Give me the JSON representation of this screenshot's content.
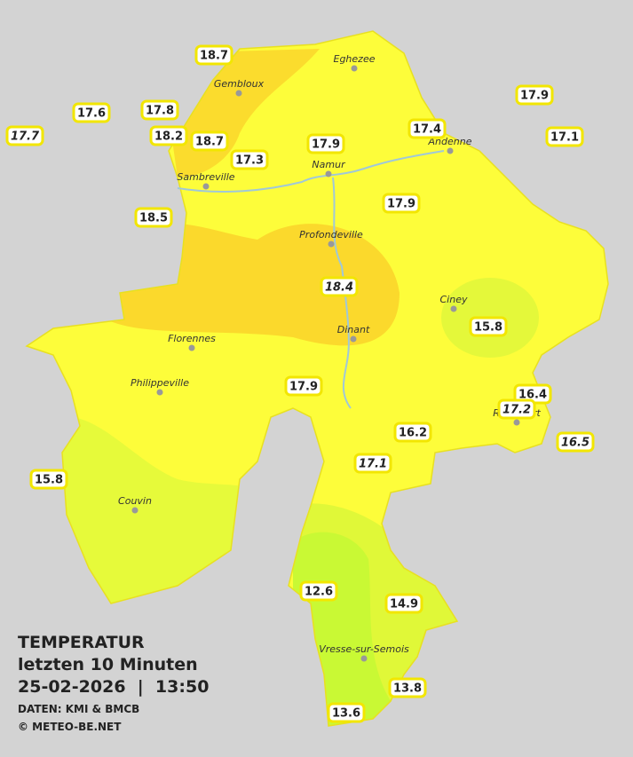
{
  "title": {
    "line1": "TEMPERATUR",
    "line2": "letzten 10 Minuten",
    "line3": "25-02-2026  |  13:50",
    "source": "DATEN: KMI & BMCB",
    "copyright": "© METEO-BE.NET"
  },
  "cities": [
    "Eghezee",
    "Gembloux",
    "Andenne",
    "Namur",
    "Sambreville",
    "Profondeville",
    "Ciney",
    "Dinant",
    "Florennes",
    "Philippeville",
    "Rochefort",
    "Couvin",
    "Vresse-sur-Semois"
  ],
  "stations": [
    {
      "value": 18.7
    },
    {
      "value": 17.6
    },
    {
      "value": 17.7,
      "italic": true
    },
    {
      "value": 17.8
    },
    {
      "value": 18.2
    },
    {
      "value": 18.7
    },
    {
      "value": 17.3
    },
    {
      "value": 17.9
    },
    {
      "value": 17.4
    },
    {
      "value": 17.9
    },
    {
      "value": 17.1
    },
    {
      "value": 18.5
    },
    {
      "value": 17.9
    },
    {
      "value": 18.4,
      "italic": true
    },
    {
      "value": 15.8
    },
    {
      "value": 17.9
    },
    {
      "value": 16.4
    },
    {
      "value": 17.2,
      "italic": true
    },
    {
      "value": 16.5,
      "italic": true
    },
    {
      "value": 16.2
    },
    {
      "value": 17.1,
      "italic": true
    },
    {
      "value": 15.8
    },
    {
      "value": 12.6
    },
    {
      "value": 14.9
    },
    {
      "value": 13.8
    },
    {
      "value": 13.6
    }
  ]
}
